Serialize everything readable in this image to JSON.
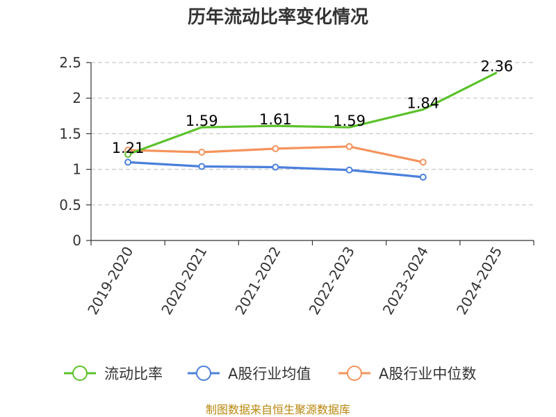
{
  "chart_data": {
    "type": "line",
    "title": "历年流动比率变化情况",
    "categories": [
      "2019-2020",
      "2020-2021",
      "2021-2022",
      "2022-2023",
      "2023-2024",
      "2024-2025"
    ],
    "ylim": [
      0,
      2.5
    ],
    "yticks": [
      0,
      0.5,
      1,
      1.5,
      2,
      2.5
    ],
    "ytick_labels": [
      "0",
      "0.5",
      "1",
      "1.5",
      "2",
      "2.5"
    ],
    "grid": true,
    "legend_position": "bottom",
    "series": [
      {
        "name": "流动比率",
        "color": "#5cc22b",
        "values": [
          1.21,
          1.59,
          1.61,
          1.59,
          1.84,
          2.36
        ],
        "labels": [
          "1.21",
          "1.59",
          "1.61",
          "1.59",
          "1.84",
          "2.36"
        ]
      },
      {
        "name": "A股行业均值",
        "color": "#4a7fdc",
        "values": [
          1.1,
          1.04,
          1.03,
          0.99,
          0.89,
          null
        ]
      },
      {
        "name": "A股行业中位数",
        "color": "#f5935c",
        "values": [
          1.27,
          1.24,
          1.29,
          1.32,
          1.1,
          null
        ]
      }
    ],
    "source": "制图数据来自恒生聚源数据库"
  }
}
